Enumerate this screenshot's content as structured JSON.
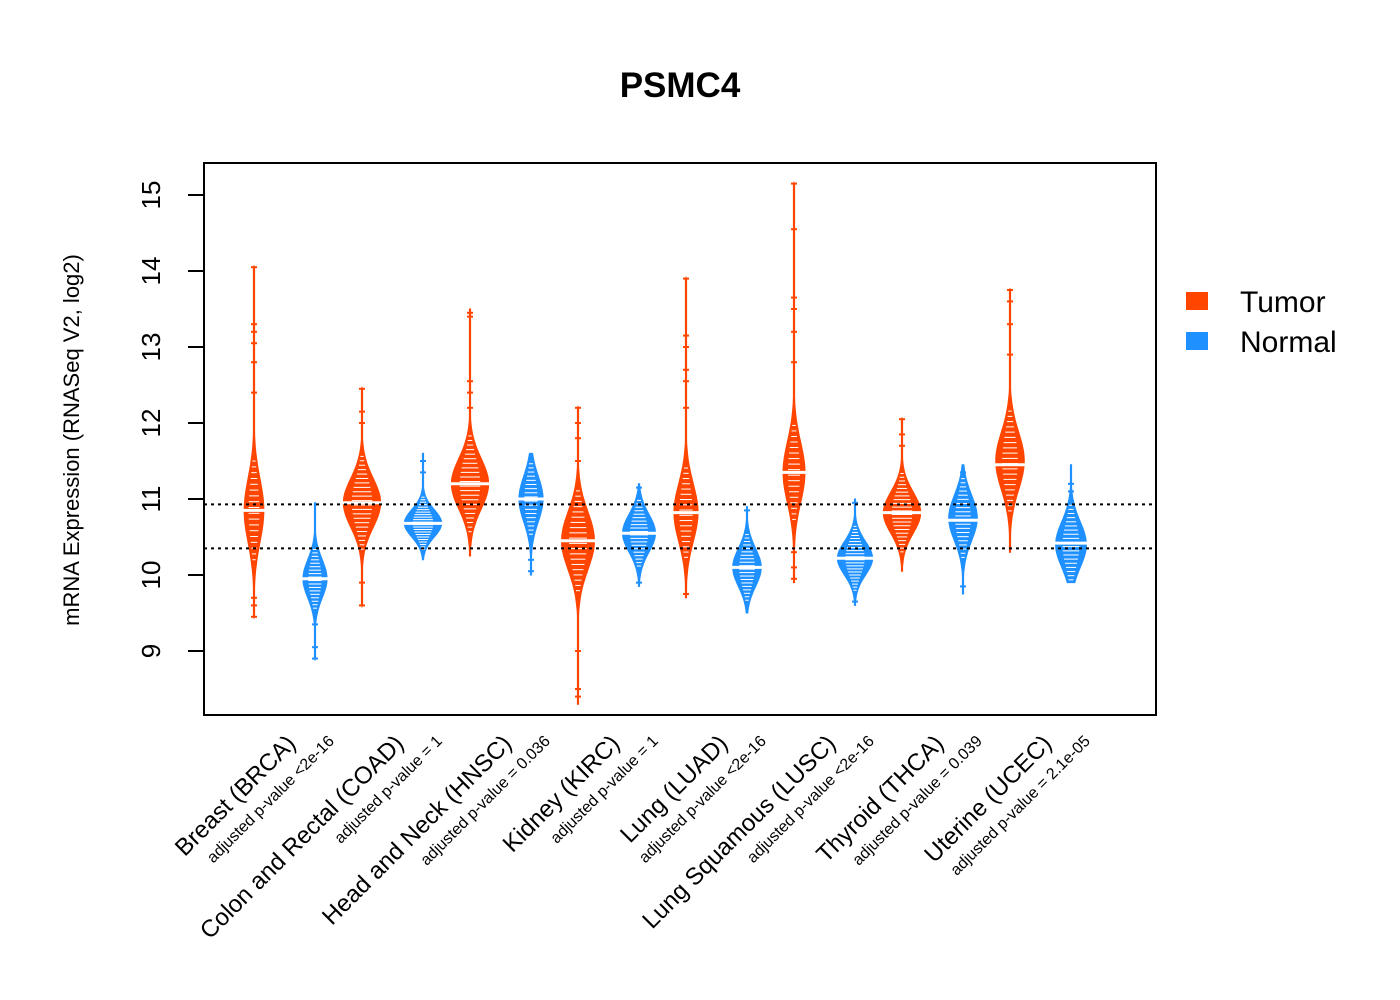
{
  "chart_data": {
    "type": "beanplot",
    "title": "PSMC4",
    "ylabel": "mRNA Expression (RNASeq V2, log2)",
    "xlabel": "",
    "ylim": [
      8.3,
      15.6
    ],
    "yticks": [
      9,
      10,
      11,
      12,
      13,
      14,
      15
    ],
    "reference_lines": [
      10.93,
      10.35
    ],
    "legend": {
      "position": "right",
      "entries": [
        {
          "name": "Tumor",
          "color": "#FF4500"
        },
        {
          "name": "Normal",
          "color": "#1E90FF"
        }
      ]
    },
    "colors": {
      "tumor": "#FF4500",
      "normal": "#1E90FF"
    },
    "groups": [
      {
        "name": "Breast (BRCA)",
        "pvalue": "adjusted p-value <2e-16",
        "tumor": {
          "min": 9.45,
          "max": 14.05,
          "mode": 10.85,
          "median": 10.85,
          "width": 0.45,
          "spread": 0.42,
          "outliers": [
            9.45,
            9.6,
            9.7,
            12.4,
            12.8,
            13.05,
            13.2,
            13.3,
            14.05
          ]
        },
        "normal": {
          "min": 8.9,
          "max": 10.95,
          "mode": 9.95,
          "median": 9.95,
          "width": 0.55,
          "spread": 0.25,
          "outliers": [
            8.9,
            9.05,
            9.35
          ]
        }
      },
      {
        "name": "Colon and Rectal (COAD)",
        "pvalue": "adjusted p-value = 1",
        "tumor": {
          "min": 9.6,
          "max": 12.45,
          "mode": 10.95,
          "median": 10.95,
          "width": 0.85,
          "spread": 0.32,
          "outliers": [
            9.6,
            9.9,
            12.0,
            12.15,
            12.45
          ]
        },
        "normal": {
          "min": 10.2,
          "max": 11.6,
          "mode": 10.68,
          "median": 10.68,
          "width": 0.85,
          "spread": 0.18,
          "outliers": [
            11.35,
            11.5
          ]
        }
      },
      {
        "name": "Head and Neck (HNSC)",
        "pvalue": "adjusted p-value = 0.036",
        "tumor": {
          "min": 10.25,
          "max": 13.5,
          "mode": 11.2,
          "median": 11.2,
          "width": 0.85,
          "spread": 0.33,
          "outliers": [
            12.2,
            12.4,
            12.55,
            13.4,
            13.45
          ]
        },
        "normal": {
          "min": 10.0,
          "max": 11.6,
          "mode": 11.0,
          "median": 11.0,
          "width": 0.55,
          "spread": 0.3,
          "outliers": [
            10.05,
            10.2
          ]
        }
      },
      {
        "name": "Kidney (KIRC)",
        "pvalue": "adjusted p-value = 1",
        "tumor": {
          "min": 8.3,
          "max": 12.2,
          "mode": 10.45,
          "median": 10.45,
          "width": 0.75,
          "spread": 0.38,
          "outliers": [
            8.4,
            8.5,
            9.0,
            11.5,
            11.8,
            12.0,
            12.2
          ]
        },
        "normal": {
          "min": 9.85,
          "max": 11.2,
          "mode": 10.55,
          "median": 10.55,
          "width": 0.75,
          "spread": 0.25,
          "outliers": [
            9.9,
            11.15
          ]
        }
      },
      {
        "name": "Lung (LUAD)",
        "pvalue": "adjusted p-value <2e-16",
        "tumor": {
          "min": 9.7,
          "max": 13.9,
          "mode": 10.82,
          "median": 10.82,
          "width": 0.55,
          "spread": 0.38,
          "outliers": [
            9.75,
            12.2,
            12.55,
            12.7,
            13.0,
            13.15,
            13.9
          ]
        },
        "normal": {
          "min": 9.5,
          "max": 10.9,
          "mode": 10.1,
          "median": 10.1,
          "width": 0.65,
          "spread": 0.25,
          "outliers": [
            10.85
          ]
        }
      },
      {
        "name": "Lung Squamous (LUSC)",
        "pvalue": "adjusted p-value <2e-16",
        "tumor": {
          "min": 9.9,
          "max": 15.15,
          "mode": 11.35,
          "median": 11.35,
          "width": 0.5,
          "spread": 0.4,
          "outliers": [
            9.95,
            10.1,
            10.3,
            12.8,
            13.2,
            13.5,
            13.65,
            14.55,
            15.15
          ]
        },
        "normal": {
          "min": 9.6,
          "max": 11.0,
          "mode": 10.22,
          "median": 10.22,
          "width": 0.8,
          "spread": 0.22,
          "outliers": [
            9.65,
            10.95
          ]
        }
      },
      {
        "name": "Thyroid (THCA)",
        "pvalue": "adjusted p-value = 0.039",
        "tumor": {
          "min": 10.05,
          "max": 12.05,
          "mode": 10.82,
          "median": 10.82,
          "width": 0.85,
          "spread": 0.27,
          "outliers": [
            11.7,
            11.85,
            12.05
          ]
        },
        "normal": {
          "min": 9.75,
          "max": 11.45,
          "mode": 10.75,
          "median": 10.72,
          "width": 0.65,
          "spread": 0.3,
          "outliers": [
            9.85,
            11.35
          ]
        }
      },
      {
        "name": "Uterine (UCEC)",
        "pvalue": "adjusted p-value = 2.1e-05",
        "tumor": {
          "min": 10.3,
          "max": 13.75,
          "mode": 11.5,
          "median": 11.45,
          "width": 0.65,
          "spread": 0.38,
          "outliers": [
            12.9,
            13.3,
            13.6,
            13.75
          ]
        },
        "normal": {
          "min": 9.9,
          "max": 11.45,
          "mode": 10.4,
          "median": 10.42,
          "width": 0.7,
          "spread": 0.3,
          "outliers": [
            11.1,
            11.2
          ]
        }
      }
    ]
  }
}
